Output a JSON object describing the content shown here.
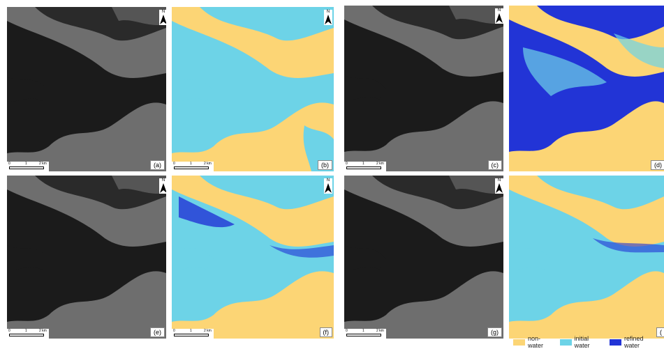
{
  "panels": [
    {
      "label": "(a)",
      "kind": "sar"
    },
    {
      "label": "(b)",
      "kind": "map"
    },
    {
      "label": "(c)",
      "kind": "sar"
    },
    {
      "label": "(d)",
      "kind": "map"
    },
    {
      "label": "(e)",
      "kind": "sar"
    },
    {
      "label": "(f)",
      "kind": "map"
    },
    {
      "label": "(g)",
      "kind": "sar"
    },
    {
      "label": "(",
      "kind": "map"
    }
  ],
  "north_label": "N",
  "scale_bar": {
    "tick0": "0",
    "tick1": "1",
    "tick2": "2 km"
  },
  "legend": {
    "items": [
      {
        "label": "non-water",
        "color": "#fcd575"
      },
      {
        "label": "initial water",
        "color": "#6dd3e7"
      },
      {
        "label": "refined water",
        "color": "#2234d6"
      }
    ]
  },
  "colors": {
    "land_sar": "#6e6e6e",
    "water_sar": "#1b1b1b",
    "land_map": "#fcd575",
    "water_map": "#6dd3e7",
    "refined_map": "#2234d6"
  }
}
